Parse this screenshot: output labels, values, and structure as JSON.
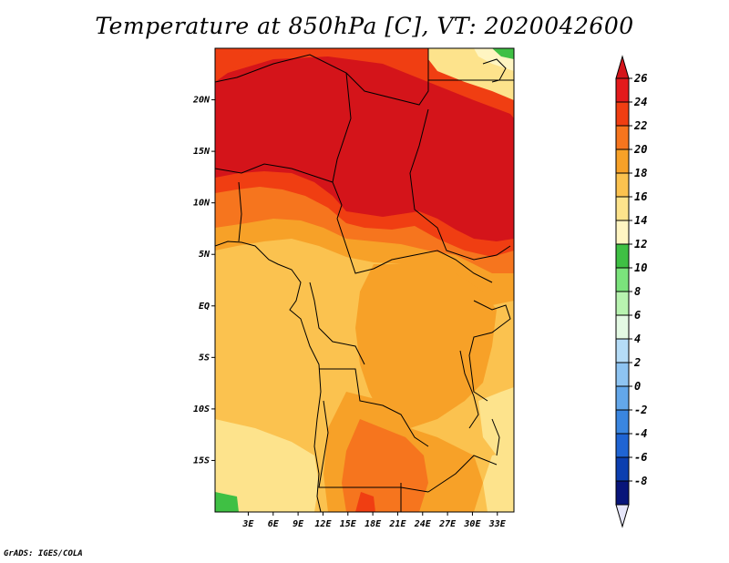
{
  "title": "Temperature at 850hPa [C], VT: 2020042600",
  "footer": "GrADS: IGES/COLA",
  "map": {
    "lon_range": [
      -1,
      35
    ],
    "lat_range": [
      -20,
      25
    ],
    "lat_ticks": [
      {
        "value": 20,
        "label": "20N"
      },
      {
        "value": 15,
        "label": "15N"
      },
      {
        "value": 10,
        "label": "10N"
      },
      {
        "value": 5,
        "label": "5N"
      },
      {
        "value": 0,
        "label": "EQ"
      },
      {
        "value": -5,
        "label": "5S"
      },
      {
        "value": -10,
        "label": "10S"
      },
      {
        "value": -15,
        "label": "15S"
      }
    ],
    "lon_ticks": [
      {
        "value": 3,
        "label": "3E"
      },
      {
        "value": 6,
        "label": "6E"
      },
      {
        "value": 9,
        "label": "9E"
      },
      {
        "value": 12,
        "label": "12E"
      },
      {
        "value": 15,
        "label": "15E"
      },
      {
        "value": 18,
        "label": "18E"
      },
      {
        "value": 21,
        "label": "21E"
      },
      {
        "value": 24,
        "label": "24E"
      },
      {
        "value": 27,
        "label": "27E"
      },
      {
        "value": 30,
        "label": "30E"
      },
      {
        "value": 33,
        "label": "33E"
      }
    ]
  },
  "colorbar": {
    "units": "C",
    "levels": [
      {
        "label": "26",
        "color": "#e31a1c"
      },
      {
        "label": "24",
        "color": "#f03e12"
      },
      {
        "label": "22",
        "color": "#f6751e"
      },
      {
        "label": "20",
        "color": "#f7a128"
      },
      {
        "label": "18",
        "color": "#fbc24f"
      },
      {
        "label": "16",
        "color": "#fde38c"
      },
      {
        "label": "14",
        "color": "#fff5c2"
      },
      {
        "label": "12",
        "color": "#3fc044"
      },
      {
        "label": "10",
        "color": "#7be37c"
      },
      {
        "label": "8",
        "color": "#b8f3b0"
      },
      {
        "label": "6",
        "color": "#e3f9e3"
      },
      {
        "label": "4",
        "color": "#b5dcf7"
      },
      {
        "label": "2",
        "color": "#8ec4f2"
      },
      {
        "label": "0",
        "color": "#63a7ea"
      },
      {
        "label": "-2",
        "color": "#3a86e0"
      },
      {
        "label": "-4",
        "color": "#1f64d3"
      },
      {
        "label": "-6",
        "color": "#0c3fb0"
      },
      {
        "label": "-8",
        "color": "#08157a"
      }
    ],
    "top_color": "#d4141a",
    "bottom_color": "#e6e6fa"
  }
}
